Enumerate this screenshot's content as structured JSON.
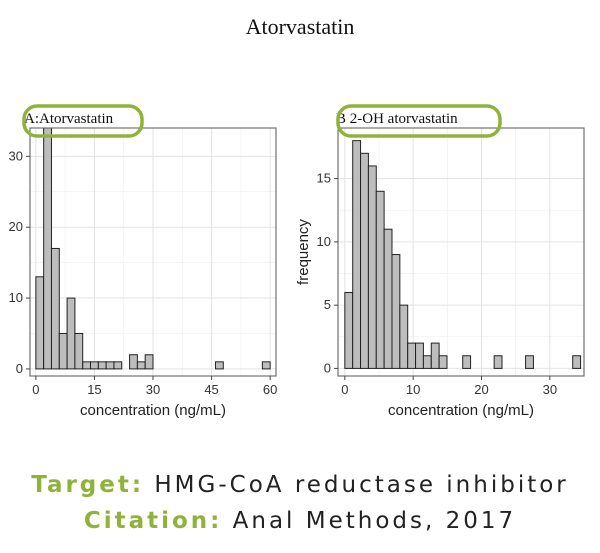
{
  "title": "Atorvastatin",
  "footer": {
    "target_label": "Target:",
    "target_value": "HMG-CoA reductase inhibitor",
    "citation_label": "Citation:",
    "citation_value": "Anal Methods, 2017"
  },
  "colors": {
    "bar": "#bdbdbd",
    "highlight": "#8fb33a",
    "grid": "#e3e3e3"
  },
  "chart_data": [
    {
      "type": "bar",
      "panel": "A",
      "title": "A:Atorvastatin",
      "xlabel": "concentration (ng/mL)",
      "ylabel": "",
      "xlim": [
        -1.5,
        61.5
      ],
      "ylim": [
        -1,
        34
      ],
      "xticks": [
        0,
        15,
        30,
        45,
        60
      ],
      "yticks": [
        0,
        10,
        20,
        30
      ],
      "bin_width": 2,
      "bin_starts": [
        0,
        2,
        4,
        6,
        8,
        10,
        12,
        14,
        16,
        18,
        20,
        22,
        24,
        26,
        28,
        30,
        32,
        34,
        36,
        38,
        40,
        42,
        44,
        46,
        48,
        50,
        52,
        54,
        56,
        58
      ],
      "values": [
        13,
        34,
        17,
        5,
        10,
        5,
        1,
        1,
        1,
        1,
        1,
        0,
        2,
        1,
        2,
        0,
        0,
        0,
        0,
        0,
        0,
        0,
        0,
        1,
        0,
        0,
        0,
        0,
        0,
        1
      ]
    },
    {
      "type": "bar",
      "panel": "B",
      "title": "B 2-OH atorvastatin",
      "xlabel": "concentration (ng/mL)",
      "ylabel": "frequency",
      "xlim": [
        -1,
        35
      ],
      "ylim": [
        -0.6,
        19
      ],
      "xticks": [
        0,
        10,
        20,
        30
      ],
      "yticks": [
        0,
        5,
        10,
        15
      ],
      "bin_width": 1.15,
      "bin_starts": [
        0,
        1.15,
        2.3,
        3.45,
        4.6,
        5.75,
        6.9,
        8.05,
        9.2,
        10.35,
        11.5,
        12.65,
        13.8,
        14.95,
        16.1,
        17.25,
        18.4,
        19.55,
        20.7,
        21.85,
        23,
        24.15,
        25.3,
        26.45,
        27.6,
        28.75,
        29.9,
        31.05,
        32.2,
        33.35
      ],
      "values": [
        6,
        18,
        17,
        16,
        14,
        11,
        9,
        5,
        2,
        2,
        1,
        2,
        1,
        0,
        0,
        1,
        0,
        0,
        0,
        1,
        0,
        0,
        0,
        1,
        0,
        0,
        0,
        0,
        0,
        1
      ]
    }
  ]
}
